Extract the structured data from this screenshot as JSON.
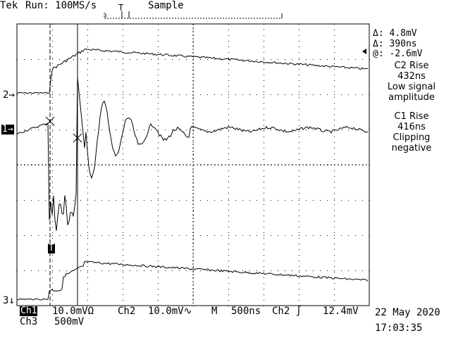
{
  "header": {
    "brand": "Tek",
    "status": "Run: 100MS/s",
    "mode": "Sample"
  },
  "channel_markers": {
    "ch2": "2",
    "ch1": "1",
    "ch3": "3",
    "trigger": "T"
  },
  "readouts": {
    "delta_v": "Δ: 4.8mV",
    "delta_t": "Δ: 390ns",
    "at_v": "@: -2.6mV",
    "note1_l1": "C2 Rise",
    "note1_l2": "432ns",
    "note1_l3": "Low signal",
    "note1_l4": "amplitude",
    "note2_l1": "C1 Rise",
    "note2_l2": "416ns",
    "note2_l3": "Clipping",
    "note2_l4": "negative"
  },
  "footer": {
    "ch1_label": "Ch1",
    "ch1_scale": "10.0mVΩ",
    "ch2_label": "Ch2",
    "ch2_scale": "10.0mV",
    "timebase_label": "M",
    "timebase": "500ns",
    "trig_src": "Ch2",
    "trig_level": "12.4mV",
    "ch3_label": "Ch3",
    "ch3_scale": "500mV",
    "date": "22 May 2020",
    "time": "17:03:35"
  },
  "colors": {
    "trace": "#000000",
    "background": "#ffffff"
  }
}
